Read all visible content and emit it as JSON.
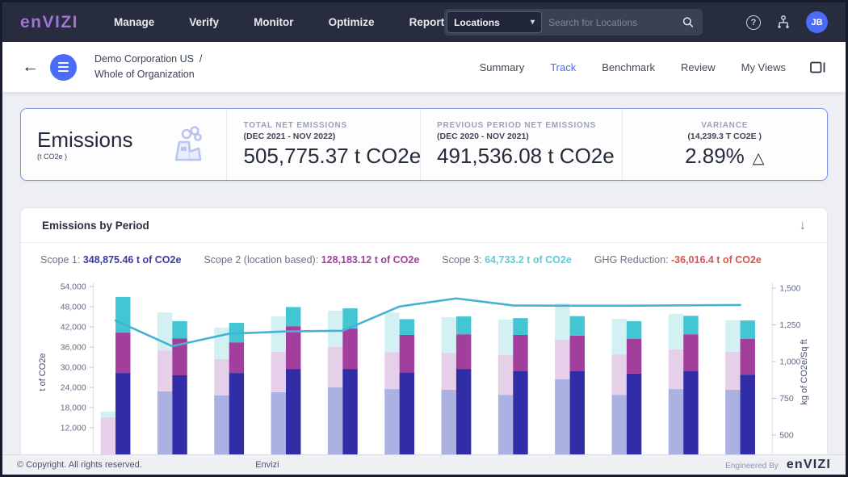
{
  "colors": {
    "accent_blue": "#4a6cf7",
    "logo_purple": "#a471d6",
    "scope1_bar": "#312da6",
    "scope1_prev_bar": "#abb2e2",
    "scope2_bar": "#a23f9c",
    "scope2_prev_bar": "#e6cfe8",
    "scope3_bar": "#43c6d3",
    "scope3_prev_bar": "#d3f1f3",
    "trend_line": "#45b1d6",
    "ghg_red": "#d9534f"
  },
  "icons": {
    "back_arrow": "←",
    "dropdown_caret": "▾",
    "help": "?",
    "variance_up": "△",
    "download": "↓"
  },
  "topnav": {
    "logo_text": "enVIZI",
    "menu_items": [
      "Manage",
      "Verify",
      "Monitor",
      "Optimize",
      "Report"
    ],
    "locations_dropdown_value": "Locations",
    "search_placeholder": "Search for Locations",
    "avatar_initials": "JB"
  },
  "subheader": {
    "breadcrumb_line1": "Demo Corporation US",
    "breadcrumb_separator": "/",
    "breadcrumb_line2": "Whole of Organization",
    "tabs": [
      "Summary",
      "Track",
      "Benchmark",
      "Review",
      "My Views"
    ],
    "active_tab": "Track"
  },
  "summary_card": {
    "title": "Emissions",
    "unit": "(t CO2e )",
    "stats": [
      {
        "label": "TOTAL NET EMISSIONS",
        "sublabel": "(DEC 2021 - NOV 2022)",
        "value": "505,775.37 t CO2e"
      },
      {
        "label": "PREVIOUS PERIOD NET EMISSIONS",
        "sublabel": "(DEC 2020 - NOV 2021)",
        "value": "491,536.08 t CO2e"
      },
      {
        "label": "VARIANCE",
        "sublabel": "(14,239.3 T CO2E )",
        "value": "2.89%",
        "direction": "up"
      }
    ]
  },
  "chart_panel": {
    "title": "Emissions by Period",
    "legend": [
      {
        "label": "Scope 1:",
        "value": "348,875.46 t of CO2e",
        "color": "#3c3a9e"
      },
      {
        "label": "Scope 2 (location based):",
        "value": "128,183.12 t of CO2e",
        "color": "#a23f9c"
      },
      {
        "label": "Scope 3:",
        "value": "64,733.2 t of CO2e",
        "color": "#5ecbd8"
      },
      {
        "label": "GHG Reduction:",
        "value": "-36,016.4 t of CO2e",
        "color": "#d9534f"
      }
    ]
  },
  "chart_data": {
    "type": "bar",
    "subtype": "stacked-pair bars (previous vs current period) with dual-axis trend line",
    "title": "Emissions by Period",
    "ylabel_left": "t of CO2e",
    "ylabel_right": "kg of CO2e/Sq ft",
    "yticks_left": [
      54000,
      48000,
      42000,
      36000,
      30000,
      24000,
      18000,
      12000
    ],
    "yticks_right": [
      1500,
      1250,
      1000,
      750,
      500
    ],
    "ylim_left_visible": [
      12000,
      54000
    ],
    "ylim_right_visible": [
      500,
      1500
    ],
    "x_axis_labels_visible": false,
    "grid": false,
    "group_count": 12,
    "series": [
      {
        "name": "Scope 1 (previous period)",
        "bar": "previous",
        "color": "#abb2e2",
        "values": [
          0,
          22800,
          21600,
          22600,
          24000,
          23500,
          23300,
          21800,
          26400,
          21800,
          23500,
          23300
        ]
      },
      {
        "name": "Scope 2 (previous period)",
        "bar": "previous",
        "color": "#e6cfe8",
        "values": [
          15100,
          12200,
          10800,
          12000,
          12000,
          11000,
          11000,
          11800,
          11800,
          12000,
          11800,
          11300
        ]
      },
      {
        "name": "Scope 3 (previous period)",
        "bar": "previous",
        "color": "#d3f1f3",
        "values": [
          1700,
          11300,
          9400,
          10500,
          10800,
          11800,
          10600,
          10600,
          10800,
          10600,
          10600,
          9400
        ]
      },
      {
        "name": "Scope 1 (current period)",
        "bar": "current",
        "color": "#312da6",
        "values": [
          28300,
          27600,
          28300,
          29500,
          29500,
          28500,
          29500,
          28800,
          28800,
          28100,
          28800,
          27800
        ]
      },
      {
        "name": "Scope 2 (current period)",
        "bar": "current",
        "color": "#a23f9c",
        "values": [
          12000,
          11000,
          9100,
          12700,
          12000,
          11100,
          10300,
          10800,
          10600,
          10300,
          11000,
          10600
        ]
      },
      {
        "name": "Scope 3 (current period)",
        "bar": "current",
        "color": "#43c6d3",
        "values": [
          10600,
          5100,
          5800,
          5700,
          6000,
          4700,
          5300,
          5000,
          5800,
          5300,
          5500,
          5500
        ]
      }
    ],
    "line_series": {
      "name": "kg of CO2e/Sq ft",
      "axis": "right",
      "color": "#45b1d6",
      "values": [
        1280,
        1105,
        1190,
        1205,
        1210,
        1375,
        1430,
        1382,
        1380,
        1380,
        1383,
        1385
      ]
    }
  },
  "footer": {
    "copyright": "© Copyright. All rights reserved.",
    "center_text": "Envizi",
    "engineered_by": "Engineered By",
    "logo_text": "enVIZI"
  }
}
